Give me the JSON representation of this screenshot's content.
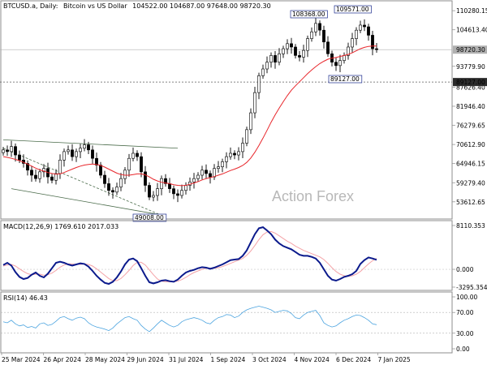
{
  "header": {
    "symbol": "BTCUSD.a, Daily:",
    "name": "Bitcoin vs US Dollar",
    "ohlc": "104522.00 104687.00 97648.00 98720.30"
  },
  "watermark": "Action Forex",
  "colors": {
    "candle": "#000000",
    "ma": "#e8262b",
    "macd_main": "#0b1a8c",
    "macd_signal": "#f4a3a7",
    "rsi": "#4aa3df",
    "trendline": "#4a6b4a",
    "level": "#5a5a5a"
  },
  "chart_data": [
    {
      "type": "candlestick",
      "panel": "price",
      "ylim": [
        49000,
        112000
      ],
      "yticks": [
        "110280.15",
        "104613.40",
        "93779.90",
        "87626.40",
        "81946.40",
        "76279.65",
        "70612.90",
        "64946.15",
        "59279.40",
        "53612.65"
      ],
      "current_price_label": "98720.30",
      "level_label": "89127.00",
      "annotations": [
        "108368.00",
        "109571.00",
        "89127.00",
        "49008.00"
      ],
      "series_close": [
        69000,
        68500,
        70000,
        67500,
        66000,
        65000,
        63000,
        61500,
        60500,
        62500,
        63500,
        61000,
        60000,
        62000,
        66000,
        68500,
        69000,
        67000,
        68500,
        69500,
        70500,
        69000,
        66500,
        64500,
        61500,
        59000,
        57000,
        56500,
        58000,
        60500,
        63000,
        66500,
        68000,
        67000,
        62500,
        58500,
        55000,
        55500,
        57500,
        60500,
        59000,
        57500,
        56000,
        55500,
        57000,
        58500,
        59500,
        60500,
        61500,
        63000,
        62000,
        61000,
        63500,
        64000,
        65500,
        67000,
        68000,
        67500,
        68500,
        71000,
        75000,
        80000,
        86000,
        91000,
        93000,
        95000,
        97000,
        95000,
        97500,
        99000,
        100500,
        99500,
        97000,
        96500,
        98500,
        102000,
        104000,
        106500,
        104500,
        101000,
        97500,
        95000,
        94000,
        95500,
        97000,
        99500,
        102000,
        104500,
        106000,
        105500,
        103000,
        99000,
        98720
      ],
      "ma_values": [
        67000,
        66800,
        66500,
        66200,
        65800,
        65300,
        64800,
        64200,
        63600,
        63100,
        62700,
        62300,
        62000,
        61800,
        61900,
        62300,
        62800,
        63300,
        63800,
        64200,
        64500,
        64700,
        64800,
        64700,
        64400,
        63900,
        63300,
        62700,
        62100,
        61700,
        61500,
        61500,
        61700,
        61900,
        61900,
        61600,
        61000,
        60300,
        59800,
        59400,
        59200,
        59000,
        58700,
        58500,
        58400,
        58500,
        58800,
        59200,
        59600,
        60100,
        60500,
        60800,
        61100,
        61500,
        61900,
        62400,
        62900,
        63300,
        63800,
        64400,
        65300,
        66600,
        68300,
        70300,
        72500,
        74800,
        77200,
        79400,
        81400,
        83300,
        85100,
        86700,
        88000,
        89200,
        90400,
        91600,
        92700,
        93700,
        94600,
        95300,
        95900,
        96200,
        96400,
        96700,
        97000,
        97300,
        97800,
        98400,
        99000,
        99400,
        99700,
        99800,
        99800
      ],
      "trendlines": [
        "upper channel",
        "lower channel",
        "inner diagonal"
      ]
    },
    {
      "type": "line",
      "panel": "macd",
      "title": "MACD(12,26,9) 1769.610 2017.033",
      "ylim": [
        -3295.354,
        8110.353
      ],
      "yticks": [
        "8110.353",
        "0.000",
        "-3295.354"
      ],
      "series": [
        {
          "values": [
            800,
            1200,
            700,
            -500,
            -1400,
            -1800,
            -1600,
            -1000,
            -600,
            -1200,
            -1500,
            -800,
            200,
            1200,
            1400,
            1200,
            900,
            700,
            900,
            1100,
            1000,
            500,
            -300,
            -1200,
            -1900,
            -2500,
            -2700,
            -2300,
            -1500,
            -400,
            900,
            1800,
            2000,
            1500,
            200,
            -1200,
            -2400,
            -2600,
            -2400,
            -2100,
            -2000,
            -2200,
            -2300,
            -1900,
            -1200,
            -600,
            -300,
            -100,
            200,
            400,
            300,
            100,
            300,
            600,
            900,
            1300,
            1700,
            1800,
            1900,
            2500,
            3500,
            5000,
            6500,
            7600,
            7800,
            7200,
            6500,
            5500,
            4800,
            4300,
            4000,
            3700,
            3200,
            2700,
            2500,
            2500,
            2300,
            2000,
            1200,
            0,
            -1200,
            -1900,
            -2100,
            -1800,
            -1400,
            -1200,
            -900,
            -300,
            1000,
            1700,
            2200,
            2000,
            1769.61
          ]
        },
        {
          "values": [
            600,
            800,
            900,
            600,
            100,
            -400,
            -800,
            -1000,
            -900,
            -900,
            -1100,
            -1000,
            -700,
            -200,
            400,
            800,
            1000,
            1000,
            900,
            900,
            1000,
            900,
            600,
            100,
            -500,
            -1100,
            -1700,
            -2100,
            -2100,
            -1700,
            -1000,
            -200,
            700,
            1300,
            1300,
            800,
            -100,
            -1000,
            -1800,
            -2200,
            -2300,
            -2300,
            -2300,
            -2200,
            -1900,
            -1500,
            -1000,
            -600,
            -300,
            0,
            200,
            200,
            200,
            300,
            500,
            800,
            1100,
            1400,
            1700,
            2000,
            2600,
            3400,
            4400,
            5500,
            6400,
            6900,
            7000,
            6700,
            6200,
            5700,
            5200,
            4800,
            4300,
            3900,
            3500,
            3200,
            2900,
            2600,
            2300,
            1800,
            1100,
            300,
            -400,
            -900,
            -1200,
            -1300,
            -1200,
            -900,
            -400,
            300,
            1000,
            1600,
            2017.033
          ]
        }
      ]
    },
    {
      "type": "line",
      "panel": "rsi",
      "title": "RSI(14) 46.43",
      "ylim": [
        0,
        100
      ],
      "yticks": [
        "100.00",
        "70.00",
        "30.00",
        "0.00"
      ],
      "series": [
        {
          "values": [
            52,
            50,
            55,
            48,
            44,
            46,
            41,
            43,
            40,
            48,
            50,
            45,
            47,
            53,
            60,
            62,
            58,
            55,
            59,
            61,
            58,
            50,
            45,
            42,
            40,
            38,
            35,
            40,
            48,
            54,
            60,
            62,
            58,
            55,
            45,
            38,
            33,
            40,
            48,
            55,
            50,
            45,
            42,
            45,
            52,
            56,
            58,
            60,
            58,
            55,
            50,
            48,
            55,
            60,
            62,
            66,
            65,
            60,
            63,
            70,
            75,
            78,
            80,
            82,
            80,
            78,
            75,
            70,
            72,
            74,
            73,
            68,
            60,
            58,
            65,
            70,
            72,
            74,
            64,
            50,
            45,
            42,
            44,
            50,
            55,
            58,
            62,
            65,
            64,
            60,
            55,
            48,
            46.43
          ]
        }
      ]
    }
  ],
  "x_axis": [
    "25 Mar 2024",
    "26 Apr 2024",
    "28 May 2024",
    "29 Jun 2024",
    "31 Jul 2024",
    "1 Sep 2024",
    "3 Oct 2024",
    "4 Nov 2024",
    "6 Dec 2024",
    "7 Jan 2025"
  ]
}
